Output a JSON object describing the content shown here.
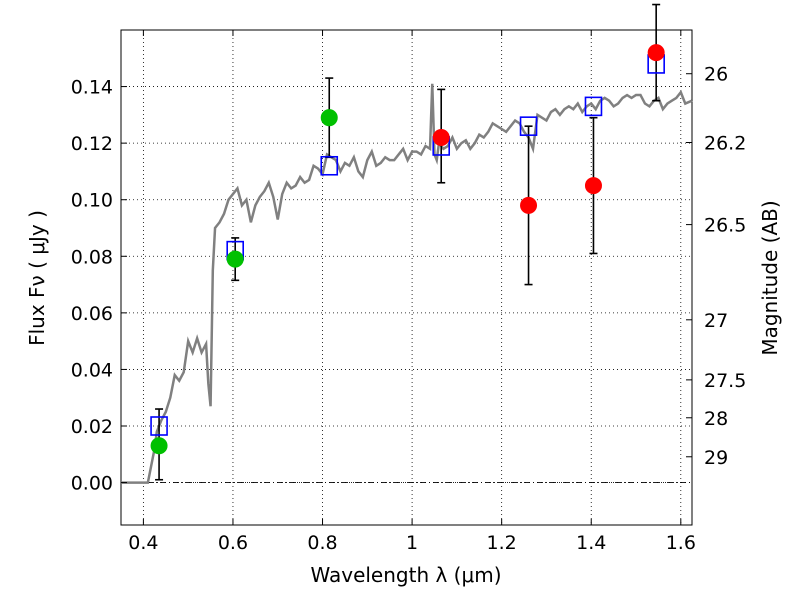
{
  "chart_data": {
    "type": "scatter",
    "title": "",
    "xlabel": "Wavelength  λ (μm)",
    "ylabel": "Flux  Fν  ( μJy )",
    "y2label": "Magnitude (AB)",
    "xlim": [
      0.35,
      1.625
    ],
    "ylim": [
      -0.015,
      0.16
    ],
    "grid": true,
    "x_ticks": [
      0.4,
      0.6,
      0.8,
      1.0,
      1.2,
      1.4,
      1.6
    ],
    "x_tick_labels": [
      "0.4",
      "0.6",
      "0.8",
      "1",
      "1.2",
      "1.4",
      "1.6"
    ],
    "y_ticks": [
      0.0,
      0.02,
      0.04,
      0.06,
      0.08,
      0.1,
      0.12,
      0.14
    ],
    "y_tick_labels": [
      "0.00",
      "0.02",
      "0.04",
      "0.06",
      "0.08",
      "0.10",
      "0.12",
      "0.14"
    ],
    "y2_tick_labels": [
      "26",
      "26.2",
      "26.5",
      "27",
      "27.5",
      "28",
      "29"
    ],
    "colors": {
      "spectrum": "#808080",
      "green_points": "#00c000",
      "red_points": "#ff0000",
      "model_squares": "#0000ff",
      "errorbars": "#000000"
    },
    "series": [
      {
        "type": "line",
        "x": [
          0.35,
          0.41,
          0.425,
          0.43,
          0.44,
          0.45,
          0.46,
          0.47,
          0.48,
          0.49,
          0.5,
          0.51,
          0.52,
          0.53,
          0.54,
          0.545,
          0.55,
          0.555,
          0.56,
          0.57,
          0.58,
          0.59,
          0.6,
          0.61,
          0.62,
          0.63,
          0.64,
          0.65,
          0.66,
          0.67,
          0.68,
          0.69,
          0.7,
          0.71,
          0.72,
          0.73,
          0.74,
          0.75,
          0.76,
          0.77,
          0.78,
          0.79,
          0.8,
          0.81,
          0.82,
          0.83,
          0.84,
          0.85,
          0.86,
          0.87,
          0.88,
          0.89,
          0.9,
          0.91,
          0.92,
          0.93,
          0.94,
          0.95,
          0.96,
          0.97,
          0.98,
          0.99,
          1.0,
          1.01,
          1.02,
          1.03,
          1.04,
          1.045,
          1.05,
          1.055,
          1.06,
          1.07,
          1.08,
          1.09,
          1.1,
          1.11,
          1.12,
          1.13,
          1.14,
          1.15,
          1.16,
          1.17,
          1.18,
          1.19,
          1.2,
          1.21,
          1.22,
          1.23,
          1.24,
          1.25,
          1.26,
          1.27,
          1.28,
          1.29,
          1.3,
          1.31,
          1.32,
          1.33,
          1.34,
          1.35,
          1.36,
          1.37,
          1.38,
          1.39,
          1.4,
          1.41,
          1.42,
          1.43,
          1.44,
          1.45,
          1.46,
          1.47,
          1.48,
          1.49,
          1.5,
          1.51,
          1.52,
          1.53,
          1.54,
          1.55,
          1.56,
          1.57,
          1.58,
          1.59,
          1.6,
          1.61,
          1.625
        ],
        "y": [
          0.0,
          0.0,
          0.012,
          0.018,
          0.022,
          0.025,
          0.03,
          0.038,
          0.036,
          0.039,
          0.05,
          0.046,
          0.051,
          0.046,
          0.049,
          0.035,
          0.027,
          0.075,
          0.09,
          0.092,
          0.095,
          0.1,
          0.102,
          0.104,
          0.098,
          0.1,
          0.092,
          0.098,
          0.101,
          0.103,
          0.106,
          0.101,
          0.093,
          0.102,
          0.106,
          0.104,
          0.105,
          0.108,
          0.106,
          0.107,
          0.112,
          0.111,
          0.109,
          0.116,
          0.115,
          0.114,
          0.11,
          0.113,
          0.112,
          0.115,
          0.11,
          0.108,
          0.114,
          0.117,
          0.112,
          0.113,
          0.115,
          0.114,
          0.114,
          0.116,
          0.118,
          0.114,
          0.117,
          0.117,
          0.116,
          0.119,
          0.118,
          0.141,
          0.116,
          0.114,
          0.12,
          0.118,
          0.119,
          0.122,
          0.118,
          0.12,
          0.121,
          0.118,
          0.12,
          0.123,
          0.122,
          0.124,
          0.127,
          0.126,
          0.125,
          0.124,
          0.126,
          0.128,
          0.127,
          0.124,
          0.122,
          0.118,
          0.13,
          0.129,
          0.128,
          0.131,
          0.132,
          0.13,
          0.132,
          0.133,
          0.132,
          0.134,
          0.131,
          0.133,
          0.134,
          0.132,
          0.135,
          0.136,
          0.135,
          0.133,
          0.134,
          0.136,
          0.137,
          0.136,
          0.137,
          0.137,
          0.134,
          0.133,
          0.135,
          0.136,
          0.132,
          0.134,
          0.135,
          0.136,
          0.138,
          0.134,
          0.135
        ],
        "name": ""
      },
      {
        "type": "errorbar",
        "x": [
          0.435,
          0.605,
          0.815,
          1.065,
          1.26,
          1.405,
          1.545
        ],
        "y": [
          0.013,
          0.079,
          0.129,
          0.122,
          0.098,
          0.105,
          0.152
        ],
        "yerr_low": [
          0.012,
          0.0075,
          0.014,
          0.016,
          0.028,
          0.024,
          0.017
        ],
        "yerr_high": [
          0.013,
          0.0075,
          0.014,
          0.017,
          0.028,
          0.024,
          0.017
        ],
        "colors": [
          "green",
          "green",
          "green",
          "red",
          "red",
          "red",
          "red"
        ],
        "name": ""
      },
      {
        "type": "model-squares",
        "x": [
          0.435,
          0.605,
          0.815,
          1.065,
          1.26,
          1.405,
          1.545
        ],
        "y": [
          0.02,
          0.082,
          0.112,
          0.119,
          0.126,
          0.133,
          0.148
        ],
        "name": ""
      }
    ]
  }
}
